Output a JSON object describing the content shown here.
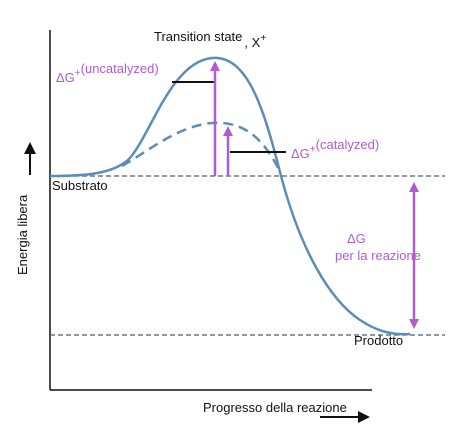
{
  "labels": {
    "transition_state": "Transition state",
    "transition_x": ", X",
    "transition_sup": "+",
    "uncat_prefix": "ΔG",
    "uncat_sup": "+",
    "uncat_text": "(uncatalyzed)",
    "cat_prefix": "ΔG",
    "cat_sup": "+",
    "cat_text": "(catalyzed)",
    "substrate": "Substrato",
    "product": "Prodotto",
    "dg": "ΔG",
    "dg_reaction": "per la reazione",
    "y_axis": "Energia libera",
    "x_axis": "Progresso della reazione"
  },
  "colors": {
    "curve": "#5b8db8",
    "arrow": "#b05bd0",
    "axis": "#111111",
    "dashed_level": "#4a5a6a"
  }
}
